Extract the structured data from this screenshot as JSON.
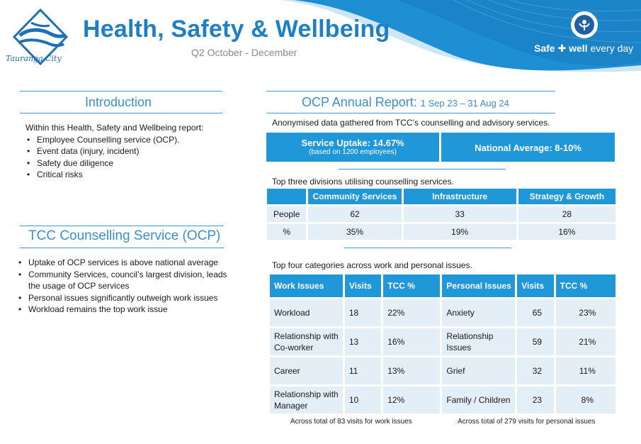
{
  "header": {
    "title": "Health, Safety & Wellbeing",
    "subtitle": "Q2 October - December",
    "logo_text": "Tauranga City",
    "tagline_left": "Safe",
    "tagline_mid": "well",
    "tagline_right": "every day",
    "colors": {
      "primary": "#1f97d8",
      "title": "#1e7fc7"
    }
  },
  "intro": {
    "title": "Introduction",
    "lead": "Within this Health, Safety and Wellbeing report:",
    "items": [
      "Employee Counselling service (OCP).",
      "Event data (injury, incident)",
      "Safety due diligence",
      "Critical risks"
    ]
  },
  "counselling": {
    "title": "TCC Counselling Service (OCP)",
    "items": [
      "Uptake of OCP services is above national average",
      "Community Services, council’s largest division, leads the usage of OCP services",
      "Personal issues significantly outweigh work issues",
      "Workload remains the top work issue"
    ]
  },
  "ocp": {
    "title": "OCP Annual Report:",
    "period": "1 Sep 23 – 31 Aug 24",
    "description": "Anonymised data gathered from TCC’s counselling and advisory  services.",
    "uptake_label": "Service Uptake:  14.67%",
    "uptake_note": "(based on 1200 employees)",
    "national_label": "National Average:  8-10%",
    "divisions_intro": "Top three divisions utilising counselling services.",
    "divisions": {
      "headers": [
        "",
        "Community Services",
        "Infrastructure",
        "Strategy & Growth"
      ],
      "rows": [
        [
          "People",
          "62",
          "33",
          "28"
        ],
        [
          "%",
          "35%",
          "19%",
          "16%"
        ]
      ]
    },
    "categories_intro": "Top four categories across work and personal issues.",
    "categories": {
      "headers": [
        "Work Issues",
        "Visits",
        "TCC %",
        "Personal Issues",
        "Visits",
        "TCC %"
      ],
      "rows": [
        [
          "Workload",
          "18",
          "22%",
          "Anxiety",
          "65",
          "23%"
        ],
        [
          "Relationship with Co-worker",
          "13",
          "16%",
          "Relationship Issues",
          "59",
          "21%"
        ],
        [
          "Career",
          "11",
          "13%",
          "Grief",
          "32",
          "11%"
        ],
        [
          "Relationship with Manager",
          "10",
          "12%",
          "Family / Children",
          "23",
          "8%"
        ]
      ]
    },
    "work_footnote": "Across total of 83 visits for work issues",
    "personal_footnote": "Across total of 279 visits for personal issues"
  }
}
